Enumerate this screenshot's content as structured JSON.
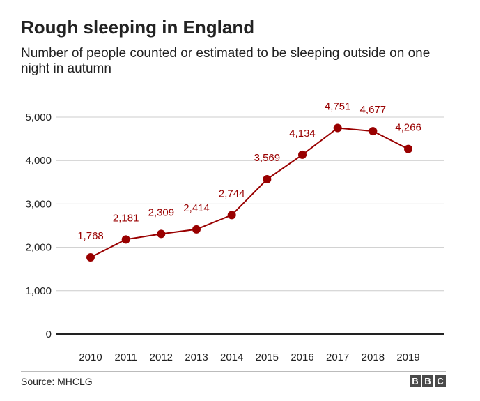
{
  "title": "Rough sleeping in England",
  "subtitle": "Number of people counted or estimated to be sleeping outside on one night in autumn",
  "source": "Source: MHCLG",
  "logo": [
    "B",
    "B",
    "C"
  ],
  "colors": {
    "line": "#990000",
    "label": "#990000",
    "grid": "#cccccc",
    "axis": "#222222"
  },
  "chart_data": {
    "type": "line",
    "categories": [
      "2010",
      "2011",
      "2012",
      "2013",
      "2014",
      "2015",
      "2016",
      "2017",
      "2018",
      "2019"
    ],
    "series": [
      {
        "values": [
          1768,
          2181,
          2309,
          2414,
          2744,
          3569,
          4134,
          4751,
          4677,
          4266
        ]
      }
    ],
    "data_labels": [
      "1,768",
      "2,181",
      "2,309",
      "2,414",
      "2,744",
      "3,569",
      "4,134",
      "4,751",
      "4,677",
      "4,266"
    ],
    "y_ticks": [
      0,
      1000,
      2000,
      3000,
      4000,
      5000
    ],
    "y_tick_labels": [
      "0",
      "1,000",
      "2,000",
      "3,000",
      "4,000",
      "5,000"
    ],
    "ylim": [
      0,
      5000
    ],
    "grid": true,
    "legend": "none"
  }
}
